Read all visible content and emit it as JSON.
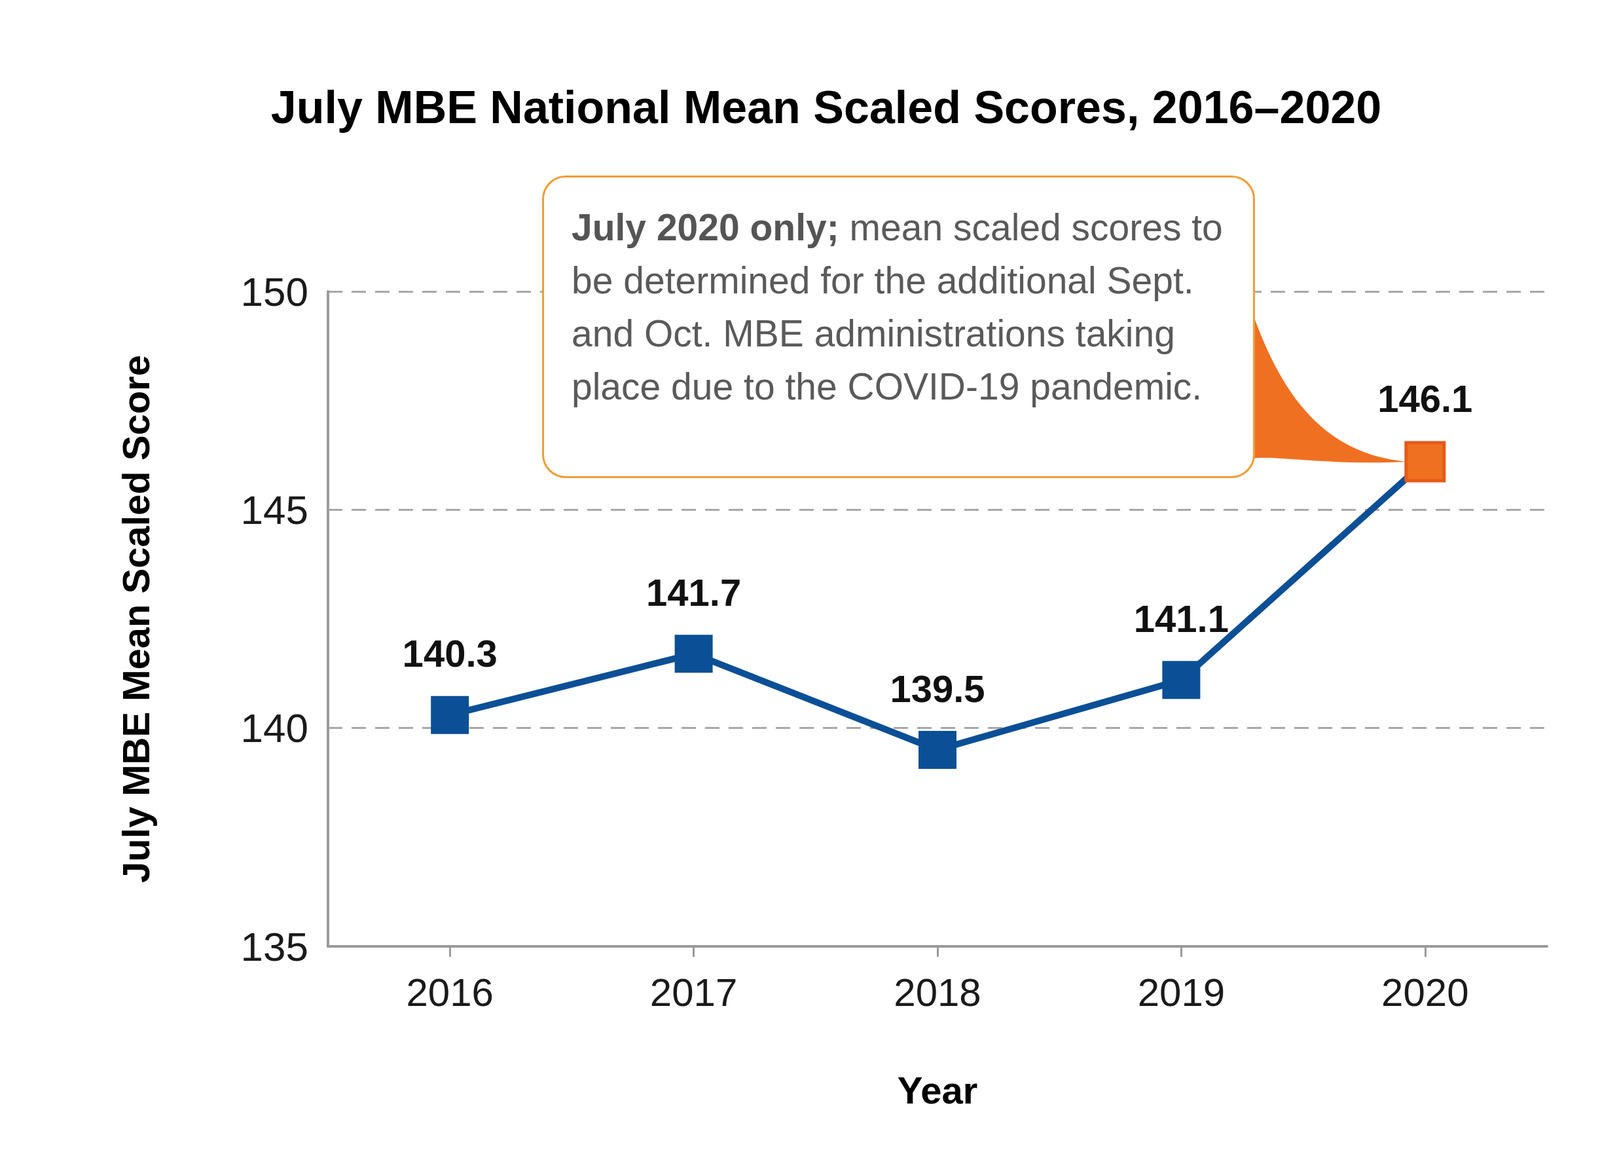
{
  "chart_data": {
    "type": "line",
    "title": "July MBE National Mean Scaled Scores, 2016–2020",
    "x_label": "Year",
    "y_label": "July MBE Mean Scaled Score",
    "categories": [
      "2016",
      "2017",
      "2018",
      "2019",
      "2020"
    ],
    "values": [
      140.3,
      141.7,
      139.5,
      141.1,
      146.1
    ],
    "color": "#0b4f96",
    "colors": [
      "#0b4f96",
      "#0b4f96",
      "#0b4f96",
      "#0b4f96",
      "#f07022"
    ],
    "marker": "square",
    "ylim": [
      135,
      150
    ],
    "yticks": [
      135,
      140,
      145,
      150
    ],
    "grid": true,
    "data_labels": true,
    "annotation": "July 2020 only; mean scaled scores to be determined for the additional Sept. and Oct. MBE administrations taking place due to the COVID-19 pandemic."
  }
}
